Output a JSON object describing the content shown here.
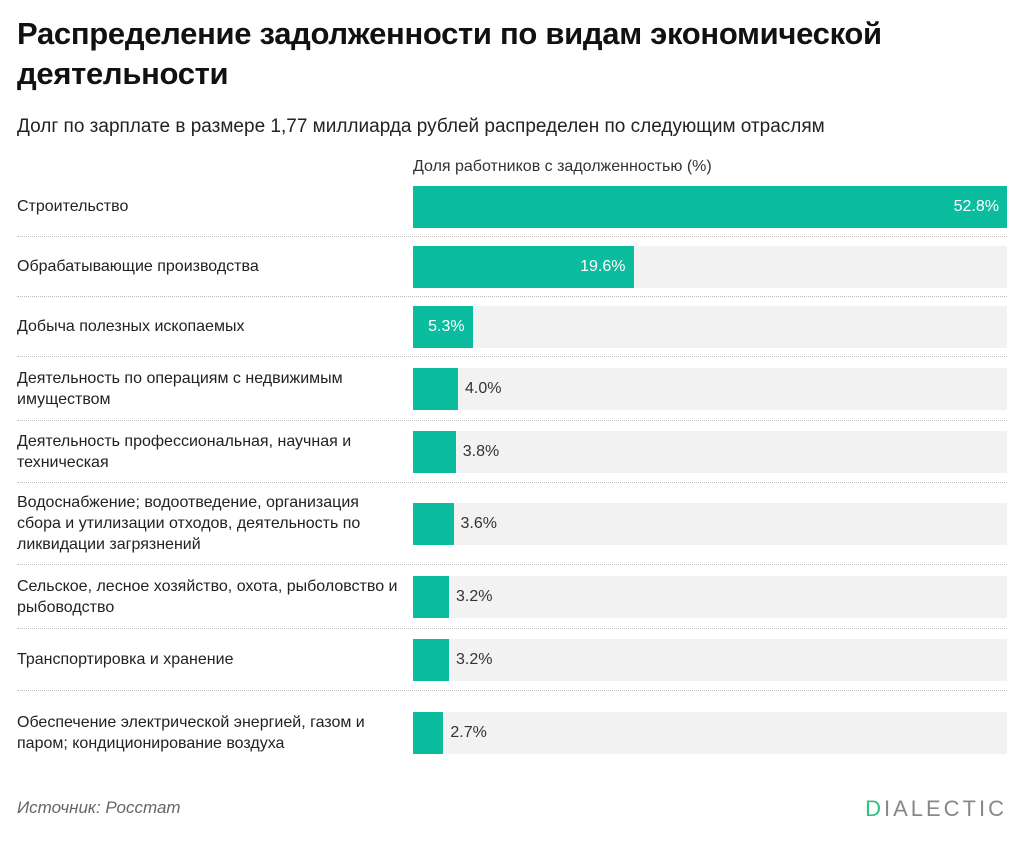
{
  "chart_data": {
    "type": "bar",
    "orientation": "horizontal",
    "title": "Распределение задолженности по видам экономической деятельности",
    "subtitle": "Долг по зарплате в размере 1,77 миллиарда рублей распределен по следующим отраслям",
    "xlabel": "Доля работников с задолженностью (%)",
    "categories": [
      "Строительство",
      "Обрабатывающие производства",
      "Добыча полезных ископаемых",
      "Деятельность по операциям с недвижимым имуществом",
      "Деятельность профессиональная, научная и техническая",
      "Водоснабжение; водоотведение, организация сбора и утилизации отходов, деятельность по ликвидации загрязнений",
      "Сельское, лесное хозяйство, охота, рыболовство и рыбоводство",
      "Транспортировка и хранение",
      "Обеспечение электрической энергией, газом и паром; кондиционирование воздуха"
    ],
    "values": [
      52.8,
      19.6,
      5.3,
      4.0,
      3.8,
      3.6,
      3.2,
      3.2,
      2.7
    ],
    "value_labels": [
      "52.8%",
      "19.6%",
      "5.3%",
      "4.0%",
      "3.8%",
      "3.6%",
      "3.2%",
      "3.2%",
      "2.7%"
    ],
    "xlim": [
      0,
      52.8
    ],
    "grid": false,
    "colors": {
      "bar": "#0bbc9f",
      "track": "#f2f2f2"
    }
  },
  "source": "Источник: Росстат",
  "logo": {
    "first": "D",
    "rest": "IALECTIC"
  }
}
